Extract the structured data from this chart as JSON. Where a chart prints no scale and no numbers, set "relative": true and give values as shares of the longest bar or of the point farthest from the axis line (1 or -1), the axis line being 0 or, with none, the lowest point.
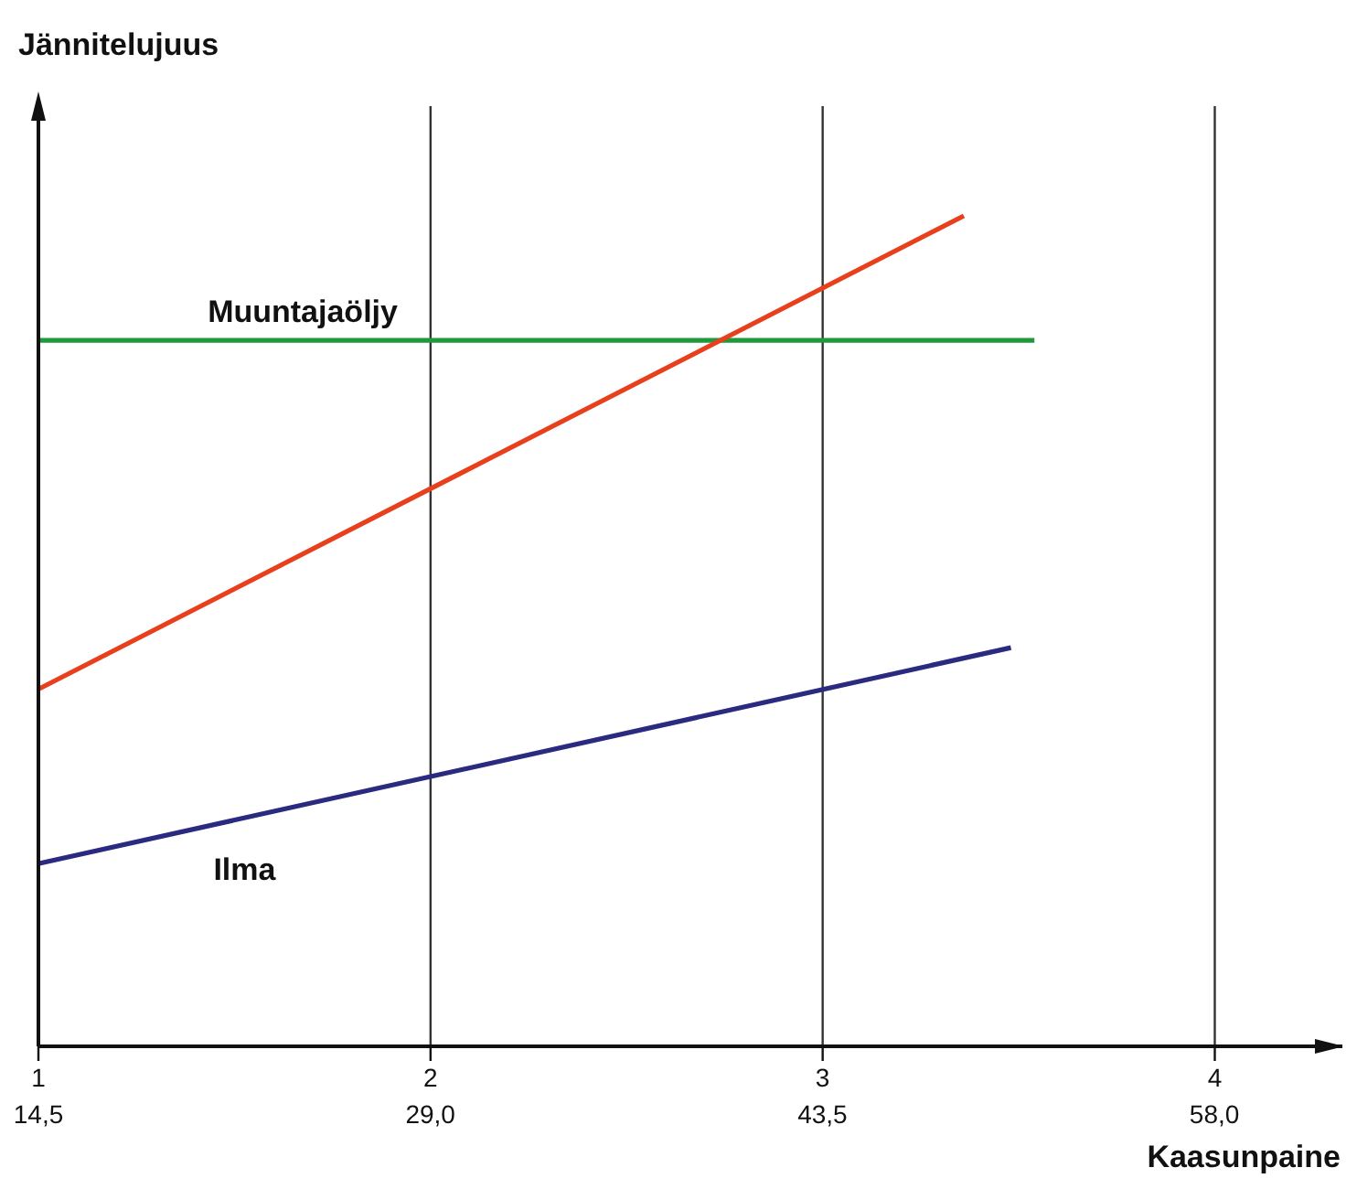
{
  "chart_data": {
    "type": "line",
    "relative": true,
    "ylabel": "Jännitelujuus",
    "xlabel": "Kaasunpaine",
    "xlim": [
      1,
      4.33
    ],
    "xticks": [
      1,
      2,
      3,
      4
    ],
    "x2lim": [
      14.5,
      62.8
    ],
    "x2ticks": [
      {
        "value": 14.5,
        "label": "14,5"
      },
      {
        "value": 29,
        "label": "29,0"
      },
      {
        "value": 43.5,
        "label": "43,5"
      },
      {
        "value": 58,
        "label": "58,0"
      }
    ],
    "grid": "x",
    "marker": "none",
    "line_style": "solid",
    "series": [
      {
        "name": "Muuntajaöljy",
        "color": "#1e9a3c",
        "x": [
          1,
          3.54
        ],
        "values": [
          0.85,
          0.85
        ]
      },
      {
        "color": "#e8401c",
        "x": [
          1,
          3.36
        ],
        "values": [
          0.43,
          1.0
        ]
      },
      {
        "name": "Ilma",
        "color": "#2a2a80",
        "x": [
          1,
          3.48
        ],
        "values": [
          0.22,
          0.48
        ]
      }
    ]
  }
}
